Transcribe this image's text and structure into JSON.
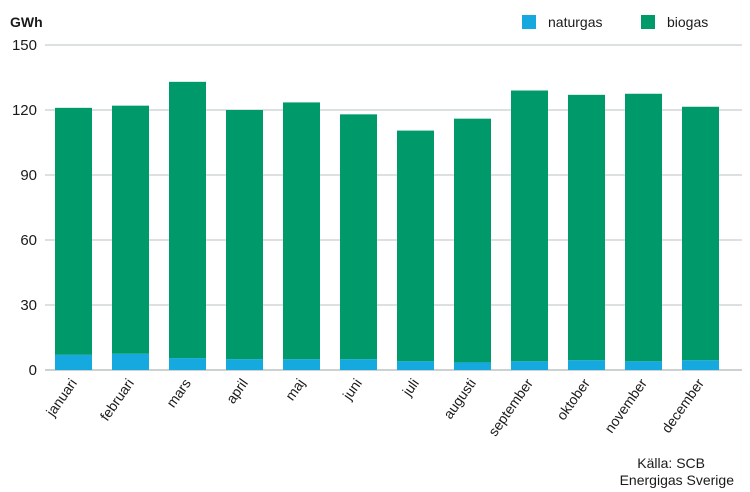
{
  "chart_data": {
    "type": "bar",
    "stacked": true,
    "unit_label": "GWh",
    "categories": [
      "januari",
      "februari",
      "mars",
      "april",
      "maj",
      "juni",
      "juli",
      "augusti",
      "september",
      "oktober",
      "november",
      "december"
    ],
    "series": [
      {
        "name": "naturgas",
        "color": "#15a9df",
        "values": [
          7,
          7.5,
          5.5,
          5,
          5,
          5,
          4,
          3.5,
          4,
          4.5,
          4,
          4.5
        ]
      },
      {
        "name": "biogas",
        "color": "#009a6a",
        "values": [
          114,
          114.5,
          127.5,
          115,
          118.5,
          113,
          106.5,
          112.5,
          125,
          122.5,
          123.5,
          117
        ]
      }
    ],
    "ylim": [
      0,
      150
    ],
    "yticks": [
      0,
      30,
      60,
      90,
      120,
      150
    ],
    "grid": true,
    "legend_position": "top-right"
  },
  "source": {
    "line1": "Källa: SCB",
    "line2": "Energigas Sverige"
  }
}
